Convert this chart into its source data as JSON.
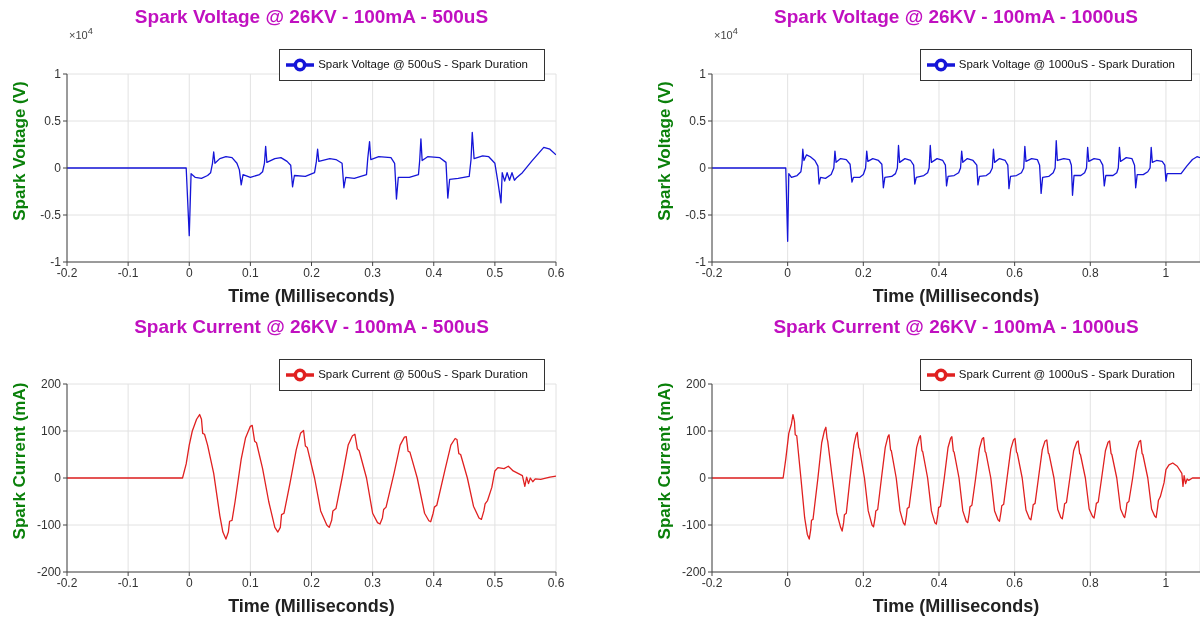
{
  "chart_data": [
    {
      "type": "line",
      "title": "Spark Voltage @ 26KV - 100mA - 500uS",
      "xlabel": "Time (Milliseconds)",
      "ylabel": "Spark Voltage (V)",
      "annotations": [
        "×10$^{4}$"
      ],
      "xlim": [
        -0.2,
        0.6
      ],
      "xticks": [
        -0.2,
        -0.1,
        0,
        0.1,
        0.2,
        0.3,
        0.4,
        0.5,
        0.6
      ],
      "ylim": [
        -1,
        1
      ],
      "yticks": [
        -1,
        -0.5,
        0,
        0.5,
        1
      ],
      "grid": true,
      "legend": "top right",
      "series": [
        {
          "name": "Spark Voltage @ 500uS - Spark Duration",
          "color": "#1515d8",
          "x": [
            -0.2,
            -0.005,
            0,
            0.003,
            0.01,
            0.02,
            0.03,
            0.035,
            0.038,
            0.04,
            0.042,
            0.05,
            0.06,
            0.07,
            0.078,
            0.082,
            0.085,
            0.088,
            0.1,
            0.115,
            0.12,
            0.123,
            0.125,
            0.127,
            0.14,
            0.15,
            0.16,
            0.166,
            0.169,
            0.172,
            0.19,
            0.205,
            0.208,
            0.21,
            0.212,
            0.23,
            0.24,
            0.25,
            0.253,
            0.256,
            0.27,
            0.29,
            0.292,
            0.295,
            0.297,
            0.31,
            0.33,
            0.336,
            0.339,
            0.342,
            0.36,
            0.375,
            0.377,
            0.379,
            0.381,
            0.39,
            0.41,
            0.42,
            0.423,
            0.426,
            0.44,
            0.458,
            0.461,
            0.463,
            0.466,
            0.48,
            0.49,
            0.5,
            0.505,
            0.51,
            0.512,
            0.516,
            0.52,
            0.524,
            0.528,
            0.532,
            0.536,
            0.545,
            0.56,
            0.58,
            0.59,
            0.6
          ],
          "values": [
            0,
            0,
            -0.72,
            -0.06,
            -0.1,
            -0.11,
            -0.08,
            -0.05,
            0.05,
            0.17,
            0.05,
            0.1,
            0.12,
            0.11,
            0.05,
            -0.02,
            -0.18,
            -0.07,
            -0.1,
            -0.07,
            -0.04,
            0.05,
            0.23,
            0.06,
            0.1,
            0.11,
            0.07,
            0.03,
            -0.2,
            -0.08,
            -0.09,
            -0.05,
            0.07,
            0.2,
            0.07,
            0.1,
            0.09,
            0.05,
            -0.21,
            -0.1,
            -0.11,
            -0.07,
            0.1,
            0.28,
            0.09,
            0.12,
            0.11,
            0.05,
            -0.33,
            -0.1,
            -0.1,
            -0.07,
            0.08,
            0.31,
            0.08,
            0.12,
            0.11,
            0.06,
            -0.32,
            -0.12,
            -0.11,
            -0.09,
            0.09,
            0.38,
            0.1,
            0.13,
            0.12,
            0.05,
            -0.15,
            -0.37,
            -0.05,
            -0.14,
            -0.05,
            -0.13,
            -0.05,
            -0.13,
            -0.1,
            -0.05,
            0.07,
            0.22,
            0.2,
            0.14
          ]
        }
      ]
    },
    {
      "type": "line",
      "title": "Spark Voltage @ 26KV - 100mA - 1000uS",
      "xlabel": "Time (Milliseconds)",
      "ylabel": "Spark Voltage (V)",
      "annotations": [
        "×10$^{4}$"
      ],
      "xlim": [
        -0.2,
        1.09
      ],
      "xticks": [
        -0.2,
        0,
        0.2,
        0.4,
        0.6,
        0.8,
        1
      ],
      "ylim": [
        -1,
        1
      ],
      "yticks": [
        -1,
        -0.5,
        0,
        0.5,
        1
      ],
      "grid": true,
      "legend": "top right",
      "series": [
        {
          "name": "Spark Voltage @ 1000uS - Spark Duration",
          "color": "#1515d8",
          "x": [
            -0.2,
            -0.005,
            0,
            0.003,
            0.01,
            0.025,
            0.035,
            0.038,
            0.04,
            0.043,
            0.05,
            0.06,
            0.072,
            0.08,
            0.083,
            0.087,
            0.1,
            0.115,
            0.122,
            0.125,
            0.128,
            0.14,
            0.155,
            0.165,
            0.17,
            0.174,
            0.19,
            0.2,
            0.206,
            0.209,
            0.212,
            0.225,
            0.24,
            0.249,
            0.253,
            0.257,
            0.275,
            0.285,
            0.29,
            0.293,
            0.296,
            0.31,
            0.325,
            0.333,
            0.336,
            0.34,
            0.36,
            0.37,
            0.374,
            0.377,
            0.38,
            0.395,
            0.41,
            0.417,
            0.42,
            0.424,
            0.44,
            0.452,
            0.457,
            0.46,
            0.463,
            0.475,
            0.49,
            0.5,
            0.503,
            0.507,
            0.525,
            0.535,
            0.541,
            0.544,
            0.547,
            0.56,
            0.575,
            0.582,
            0.585,
            0.589,
            0.605,
            0.618,
            0.624,
            0.627,
            0.63,
            0.645,
            0.66,
            0.666,
            0.67,
            0.674,
            0.69,
            0.702,
            0.707,
            0.71,
            0.713,
            0.73,
            0.745,
            0.75,
            0.753,
            0.757,
            0.775,
            0.785,
            0.79,
            0.793,
            0.796,
            0.81,
            0.825,
            0.833,
            0.837,
            0.841,
            0.86,
            0.87,
            0.874,
            0.877,
            0.88,
            0.895,
            0.91,
            0.917,
            0.92,
            0.924,
            0.94,
            0.952,
            0.958,
            0.961,
            0.964,
            0.975,
            0.99,
            0.997,
            1.0,
            1.003,
            1.04,
            1.055,
            1.07,
            1.082,
            1.09
          ],
          "values": [
            0,
            0,
            -0.78,
            -0.06,
            -0.1,
            -0.08,
            -0.04,
            0.05,
            0.2,
            0.08,
            0.14,
            0.12,
            0.08,
            0.02,
            -0.17,
            -0.1,
            -0.11,
            -0.07,
            0,
            0.18,
            0.06,
            0.1,
            0.09,
            0.04,
            -0.15,
            -0.1,
            -0.1,
            -0.07,
            0,
            0.18,
            0.07,
            0.1,
            0.08,
            0.04,
            -0.21,
            -0.1,
            -0.09,
            -0.06,
            0,
            0.24,
            0.06,
            0.1,
            0.08,
            0.03,
            -0.17,
            -0.1,
            -0.08,
            -0.05,
            0,
            0.24,
            0.06,
            0.1,
            0.08,
            0.03,
            -0.19,
            -0.09,
            -0.08,
            -0.05,
            0,
            0.18,
            0.06,
            0.1,
            0.08,
            0.03,
            -0.18,
            -0.09,
            -0.08,
            -0.05,
            0,
            0.2,
            0.06,
            0.1,
            0.08,
            0.03,
            -0.22,
            -0.09,
            -0.08,
            -0.05,
            0,
            0.23,
            0.07,
            0.1,
            0.09,
            0.03,
            -0.27,
            -0.1,
            -0.09,
            -0.05,
            0,
            0.29,
            0.08,
            0.1,
            0.09,
            0.03,
            -0.29,
            -0.08,
            -0.08,
            -0.05,
            0,
            0.22,
            0.07,
            0.1,
            0.09,
            0.03,
            -0.19,
            -0.08,
            -0.08,
            -0.05,
            0,
            0.22,
            0.07,
            0.11,
            0.1,
            0.03,
            -0.21,
            -0.07,
            -0.07,
            -0.04,
            0,
            0.22,
            0.06,
            0.08,
            0.07,
            0.03,
            -0.14,
            -0.06,
            -0.06,
            0.02,
            0.09,
            0.12,
            0.11
          ]
        }
      ]
    },
    {
      "type": "line",
      "title": "Spark Current @ 26KV - 100mA - 500uS",
      "xlabel": "Time (Milliseconds)",
      "ylabel": "Spark Current (mA)",
      "xlim": [
        -0.2,
        0.6
      ],
      "xticks": [
        -0.2,
        -0.1,
        0,
        0.1,
        0.2,
        0.3,
        0.4,
        0.5,
        0.6
      ],
      "ylim": [
        -200,
        200
      ],
      "yticks": [
        -200,
        -100,
        0,
        100,
        200
      ],
      "grid": true,
      "legend": "top right",
      "series": [
        {
          "name": "Spark Current @ 500uS - Spark Duration",
          "color": "#e02020",
          "x": [
            -0.2,
            -0.011,
            -0.005,
            0,
            0.005,
            0.012,
            0.017,
            0.02,
            0.022,
            0.025,
            0.03,
            0.04,
            0.05,
            0.055,
            0.06,
            0.064,
            0.066,
            0.07,
            0.075,
            0.085,
            0.092,
            0.1,
            0.103,
            0.107,
            0.11,
            0.12,
            0.13,
            0.14,
            0.145,
            0.149,
            0.151,
            0.155,
            0.165,
            0.175,
            0.182,
            0.187,
            0.19,
            0.193,
            0.205,
            0.215,
            0.225,
            0.229,
            0.233,
            0.235,
            0.24,
            0.25,
            0.26,
            0.267,
            0.271,
            0.275,
            0.278,
            0.29,
            0.3,
            0.308,
            0.312,
            0.316,
            0.318,
            0.322,
            0.335,
            0.345,
            0.352,
            0.355,
            0.358,
            0.361,
            0.373,
            0.385,
            0.392,
            0.395,
            0.399,
            0.401,
            0.405,
            0.418,
            0.428,
            0.435,
            0.438,
            0.441,
            0.444,
            0.455,
            0.465,
            0.474,
            0.478,
            0.482,
            0.484,
            0.488,
            0.495,
            0.5,
            0.505,
            0.515,
            0.522,
            0.53,
            0.545,
            0.549,
            0.552,
            0.555,
            0.558,
            0.562,
            0.566,
            0.575,
            0.59,
            0.6
          ],
          "values": [
            0,
            0,
            30,
            70,
            100,
            125,
            135,
            125,
            95,
            93,
            70,
            10,
            -80,
            -115,
            -130,
            -115,
            -92,
            -90,
            -50,
            40,
            85,
            110,
            112,
            78,
            75,
            20,
            -50,
            -105,
            -115,
            -105,
            -78,
            -75,
            -10,
            60,
            95,
            101,
            68,
            65,
            0,
            -70,
            -100,
            -105,
            -90,
            -70,
            -65,
            0,
            70,
            90,
            93,
            62,
            58,
            0,
            -75,
            -95,
            -98,
            -85,
            -67,
            -62,
            10,
            70,
            87,
            88,
            57,
            55,
            0,
            -75,
            -91,
            -93,
            -75,
            -62,
            -58,
            15,
            70,
            84,
            82,
            52,
            50,
            0,
            -60,
            -85,
            -88,
            -70,
            -55,
            -48,
            -20,
            15,
            22,
            20,
            25,
            15,
            5,
            -18,
            2,
            -12,
            0,
            -8,
            -2,
            -3,
            2,
            4
          ]
        }
      ]
    },
    {
      "type": "line",
      "title": "Spark Current @ 26KV - 100mA - 1000uS",
      "xlabel": "Time (Milliseconds)",
      "ylabel": "Spark Current (mA)",
      "xlim": [
        -0.2,
        1.09
      ],
      "xticks": [
        -0.2,
        0,
        0.2,
        0.4,
        0.6,
        0.8,
        1
      ],
      "ylim": [
        -200,
        200
      ],
      "yticks": [
        -200,
        -100,
        0,
        100,
        200
      ],
      "grid": true,
      "legend": "top right",
      "series": [
        {
          "name": "Spark Current @ 1000uS - Spark Duration",
          "color": "#e02020",
          "x": [
            -0.2,
            -0.012,
            -0.005,
            0.003,
            0.01,
            0.014,
            0.018,
            0.02,
            0.024,
            0.035,
            0.045,
            0.052,
            0.057,
            0.061,
            0.063,
            0.067,
            0.08,
            0.09,
            0.097,
            0.101,
            0.104,
            0.106,
            0.118,
            0.13,
            0.14,
            0.144,
            0.148,
            0.15,
            0.155,
            0.165,
            0.175,
            0.181,
            0.184,
            0.188,
            0.19,
            0.203,
            0.213,
            0.223,
            0.227,
            0.231,
            0.233,
            0.238,
            0.248,
            0.258,
            0.265,
            0.268,
            0.272,
            0.274,
            0.287,
            0.297,
            0.306,
            0.31,
            0.314,
            0.316,
            0.321,
            0.331,
            0.341,
            0.348,
            0.351,
            0.355,
            0.357,
            0.37,
            0.38,
            0.389,
            0.393,
            0.397,
            0.399,
            0.404,
            0.414,
            0.424,
            0.431,
            0.434,
            0.438,
            0.44,
            0.453,
            0.463,
            0.472,
            0.476,
            0.48,
            0.482,
            0.487,
            0.497,
            0.507,
            0.514,
            0.518,
            0.522,
            0.524,
            0.537,
            0.547,
            0.556,
            0.56,
            0.564,
            0.566,
            0.571,
            0.58,
            0.59,
            0.597,
            0.601,
            0.605,
            0.607,
            0.62,
            0.63,
            0.639,
            0.643,
            0.647,
            0.649,
            0.654,
            0.663,
            0.673,
            0.68,
            0.685,
            0.689,
            0.691,
            0.704,
            0.714,
            0.722,
            0.726,
            0.73,
            0.732,
            0.737,
            0.746,
            0.756,
            0.764,
            0.768,
            0.772,
            0.774,
            0.787,
            0.797,
            0.806,
            0.81,
            0.814,
            0.816,
            0.821,
            0.83,
            0.84,
            0.847,
            0.851,
            0.855,
            0.857,
            0.87,
            0.88,
            0.888,
            0.891,
            0.895,
            0.897,
            0.902,
            0.912,
            0.922,
            0.929,
            0.933,
            0.937,
            0.939,
            0.952,
            0.962,
            0.97,
            0.974,
            0.978,
            0.98,
            0.985,
            0.995,
            1.0,
            1.008,
            1.018,
            1.03,
            1.042,
            1.045,
            1.048,
            1.052,
            1.056,
            1.06,
            1.07,
            1.09
          ],
          "values": [
            0,
            0,
            40,
            95,
            115,
            135,
            120,
            92,
            90,
            0,
            -85,
            -120,
            -130,
            -110,
            -90,
            -88,
            0,
            75,
            100,
            108,
            85,
            78,
            0,
            -75,
            -105,
            -113,
            -95,
            -78,
            -75,
            0,
            70,
            92,
            97,
            65,
            62,
            0,
            -70,
            -100,
            -104,
            -85,
            -70,
            -67,
            0,
            65,
            88,
            92,
            60,
            58,
            0,
            -70,
            -96,
            -100,
            -80,
            -65,
            -62,
            0,
            65,
            86,
            90,
            58,
            56,
            0,
            -70,
            -95,
            -98,
            -78,
            -63,
            -60,
            0,
            65,
            85,
            88,
            57,
            55,
            0,
            -70,
            -92,
            -95,
            -75,
            -61,
            -58,
            0,
            63,
            83,
            86,
            56,
            54,
            0,
            -70,
            -89,
            -92,
            -72,
            -59,
            -56,
            0,
            62,
            81,
            84,
            55,
            53,
            0,
            -68,
            -86,
            -89,
            -70,
            -57,
            -54,
            0,
            60,
            78,
            81,
            53,
            51,
            0,
            -67,
            -84,
            -87,
            -68,
            -55,
            -52,
            0,
            58,
            76,
            79,
            52,
            50,
            0,
            -66,
            -82,
            -85,
            -66,
            -54,
            -51,
            0,
            58,
            76,
            79,
            52,
            50,
            0,
            -66,
            -81,
            -84,
            -66,
            -53,
            -50,
            0,
            58,
            77,
            80,
            52,
            50,
            0,
            -66,
            -81,
            -84,
            -62,
            -48,
            -40,
            -10,
            18,
            28,
            32,
            25,
            10,
            -18,
            5,
            -12,
            -2,
            -5,
            0,
            0
          ]
        }
      ]
    }
  ]
}
